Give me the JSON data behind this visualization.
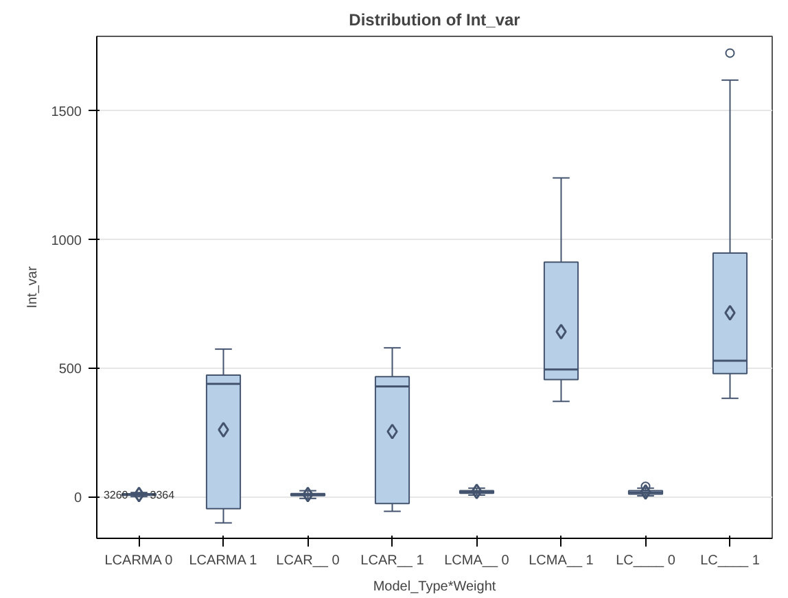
{
  "chart_data": {
    "type": "box",
    "title": "Distribution of Int_var",
    "xlabel": "Model_Type*Weight",
    "ylabel": "Int_var",
    "categories": [
      "LCARMA 0",
      "LCARMA 1",
      "LCAR__ 0",
      "LCAR__ 1",
      "LCMA__ 0",
      "LCMA__ 1",
      "LC____ 0",
      "LC____ 1"
    ],
    "color": "#b8cfe8",
    "boxes": [
      {
        "low": 2,
        "q1": 7,
        "median": 10,
        "q3": 13,
        "high": 18,
        "mean": 10
      },
      {
        "low": -100,
        "q1": -45,
        "median": 440,
        "q3": 474,
        "high": 575,
        "mean": 262
      },
      {
        "low": -5,
        "q1": 6,
        "median": 10,
        "q3": 14,
        "high": 25,
        "mean": 10
      },
      {
        "low": -55,
        "q1": -25,
        "median": 430,
        "q3": 468,
        "high": 580,
        "mean": 255
      },
      {
        "low": 8,
        "q1": 15,
        "median": 20,
        "q3": 25,
        "high": 35,
        "mean": 22
      },
      {
        "low": 372,
        "q1": 457,
        "median": 496,
        "q3": 913,
        "high": 1240,
        "mean": 643
      },
      {
        "low": 5,
        "q1": 12,
        "median": 18,
        "q3": 25,
        "high": 35,
        "mean": 20,
        "outliers": [
          42
        ]
      },
      {
        "low": 384,
        "q1": 480,
        "median": 530,
        "q3": 948,
        "high": 1620,
        "mean": 716,
        "outliers": [
          1725
        ]
      }
    ],
    "ylim": [
      -160,
      1790
    ],
    "yticks": [
      0,
      500,
      1000,
      1500
    ],
    "grid": "y",
    "annotations": [
      {
        "text": "3260",
        "x": "LCARMA 0",
        "y": 10
      },
      {
        "text": "3364",
        "x": "LCARMA 0",
        "y": 10
      }
    ]
  }
}
